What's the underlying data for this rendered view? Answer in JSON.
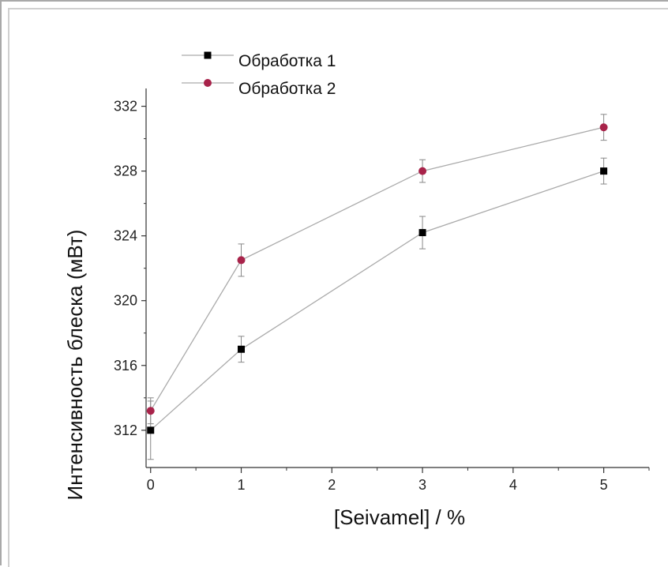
{
  "chart_data": {
    "type": "line",
    "title": "",
    "xlabel": "[Seivamel] / %",
    "ylabel": "Интенсивность блеска (мВт)",
    "xlim": [
      -0.05,
      5.5
    ],
    "ylim": [
      309.7,
      333.1
    ],
    "x_ticks": [
      0,
      1,
      2,
      3,
      4,
      5
    ],
    "y_ticks": [
      312,
      316,
      320,
      324,
      328,
      332
    ],
    "grid": false,
    "legend_position": "top-left",
    "series": [
      {
        "name": "Обработка 1",
        "marker": "square",
        "color": "#000000",
        "line_color": "#aaaaaa",
        "x": [
          0,
          1,
          3,
          5
        ],
        "y": [
          312.0,
          317.0,
          324.2,
          328.0
        ],
        "error": [
          1.8,
          0.8,
          1.0,
          0.8
        ]
      },
      {
        "name": "Обработка 2",
        "marker": "circle",
        "color": "#a8234a",
        "line_color": "#aaaaaa",
        "x": [
          0,
          1,
          3,
          5
        ],
        "y": [
          313.2,
          322.5,
          328.0,
          330.7
        ],
        "error": [
          0.8,
          1.0,
          0.7,
          0.8
        ]
      }
    ]
  }
}
